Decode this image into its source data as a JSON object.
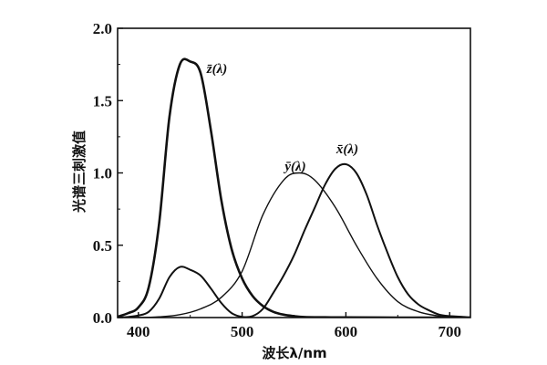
{
  "chart_data": {
    "type": "line",
    "title": "",
    "xlabel": "波长λ/nm",
    "ylabel": "光谱三刺激值",
    "xlim": [
      380,
      720
    ],
    "ylim": [
      0,
      2.0
    ],
    "xticks": [
      400,
      500,
      600,
      700
    ],
    "yticks": [
      0.0,
      0.5,
      1.0,
      1.5,
      2.0
    ],
    "xtick_labels": [
      "400",
      "500",
      "600",
      "700"
    ],
    "ytick_labels": [
      "0.0",
      "0.5",
      "1.0",
      "1.5",
      "2.0"
    ],
    "grid": false,
    "legend": "none",
    "series": [
      {
        "label": "z̄(λ)",
        "color": "#111111",
        "x": [
          380,
          390,
          400,
          410,
          420,
          430,
          440,
          450,
          460,
          470,
          480,
          490,
          500,
          510,
          520,
          530,
          540,
          550,
          560,
          580,
          600,
          650,
          700
        ],
        "y": [
          0.006,
          0.03,
          0.07,
          0.21,
          0.65,
          1.39,
          1.75,
          1.77,
          1.69,
          1.29,
          0.81,
          0.47,
          0.27,
          0.15,
          0.08,
          0.04,
          0.02,
          0.01,
          0.004,
          0.002,
          0.001,
          0.0,
          0.0
        ]
      },
      {
        "label": "ȳ(λ)",
        "color": "#111111",
        "x": [
          380,
          400,
          420,
          440,
          460,
          480,
          500,
          520,
          540,
          555,
          570,
          590,
          610,
          630,
          650,
          670,
          690,
          700,
          720
        ],
        "y": [
          0.0,
          0.0,
          0.005,
          0.02,
          0.06,
          0.14,
          0.32,
          0.71,
          0.95,
          1.0,
          0.95,
          0.76,
          0.5,
          0.27,
          0.11,
          0.04,
          0.01,
          0.004,
          0.001
        ]
      },
      {
        "label": "x̄(λ)",
        "color": "#111111",
        "x": [
          380,
          390,
          400,
          410,
          420,
          430,
          440,
          450,
          460,
          470,
          480,
          490,
          500,
          510,
          520,
          530,
          540,
          550,
          560,
          570,
          580,
          590,
          600,
          610,
          620,
          630,
          640,
          650,
          660,
          670,
          680,
          690,
          700,
          720
        ],
        "y": [
          0.001,
          0.004,
          0.014,
          0.04,
          0.13,
          0.28,
          0.35,
          0.33,
          0.29,
          0.2,
          0.1,
          0.03,
          0.005,
          0.01,
          0.06,
          0.17,
          0.29,
          0.43,
          0.6,
          0.76,
          0.92,
          1.03,
          1.06,
          1.0,
          0.85,
          0.64,
          0.45,
          0.28,
          0.16,
          0.09,
          0.05,
          0.02,
          0.01,
          0.002
        ]
      }
    ]
  }
}
